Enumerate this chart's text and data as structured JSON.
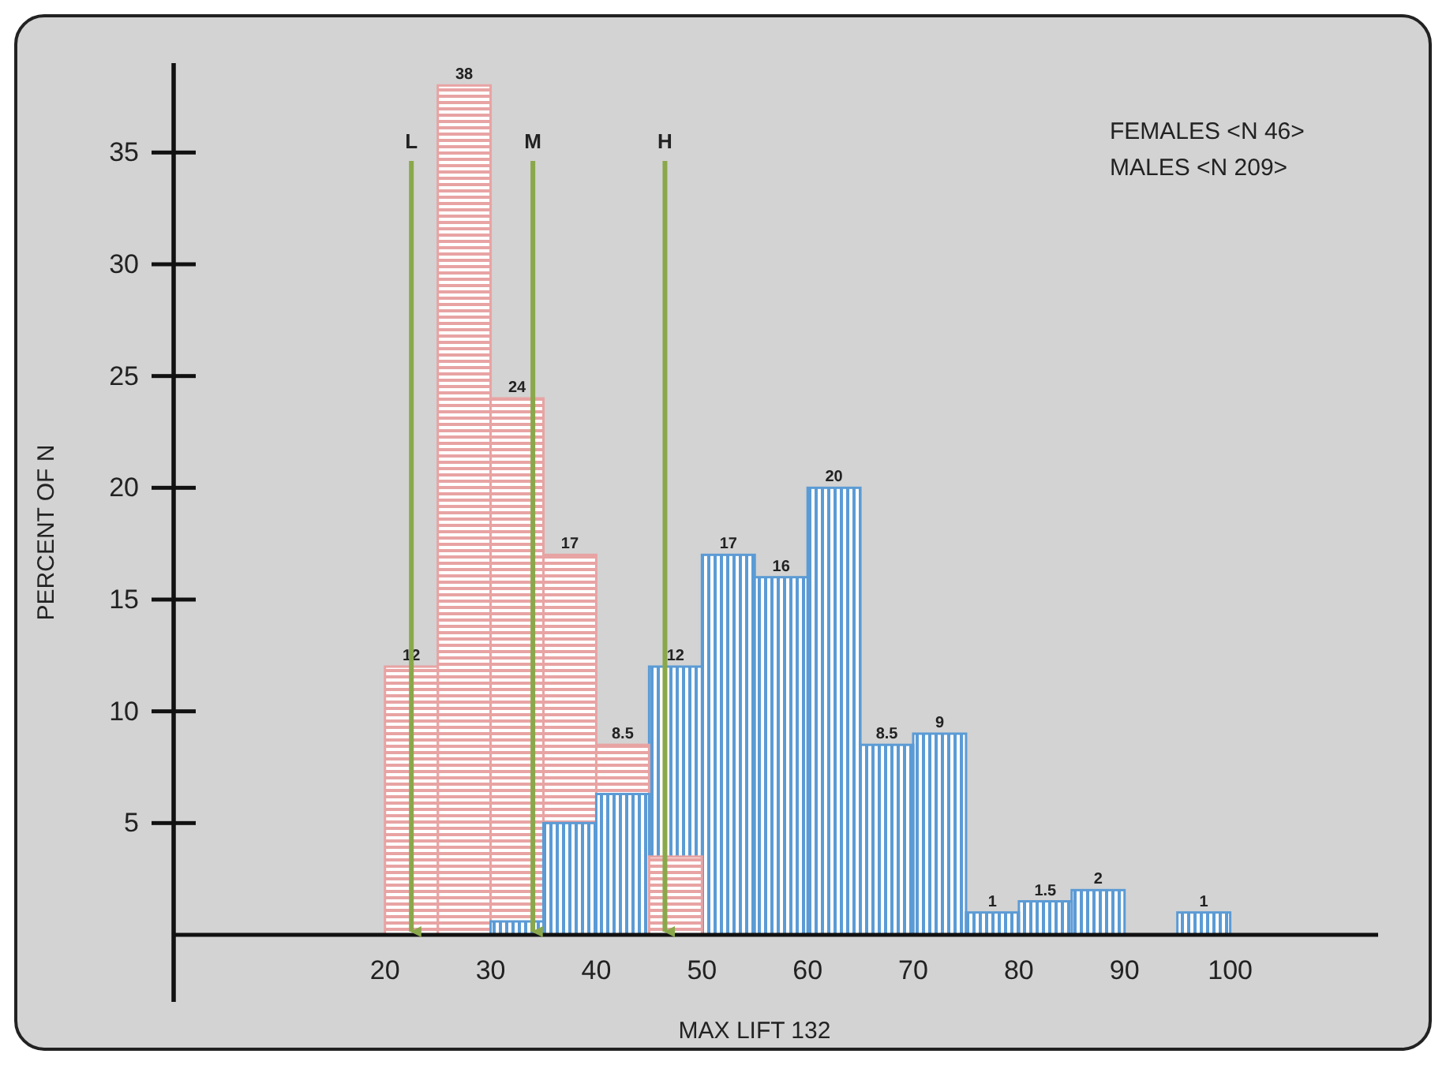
{
  "chart_data": {
    "type": "bar",
    "xlabel": "MAX LIFT 132",
    "ylabel": "PERCENT OF N",
    "xlim": [
      0,
      114
    ],
    "xticks": [
      20,
      30,
      40,
      50,
      60,
      70,
      80,
      90,
      100
    ],
    "ylim": [
      -3,
      39
    ],
    "yticks": [
      5,
      10,
      15,
      20,
      25,
      30,
      35
    ],
    "grid": false,
    "series": [
      {
        "color": "#e8a3a3",
        "x": [
          22.5,
          27.5,
          32.5,
          37.5,
          42.5,
          47.5
        ],
        "values": [
          12,
          38,
          24,
          17,
          8.5,
          3.5
        ],
        "value_labels": [
          "12",
          "38",
          "24",
          "17",
          "8.5",
          null
        ]
      },
      {
        "color": "#5b9bd5",
        "x": [
          32.5,
          37.5,
          42.5,
          47.5,
          52.5,
          57.5,
          62.5,
          67.5,
          72.5,
          77.5,
          82.5,
          87.5,
          97.5
        ],
        "values": [
          0.6,
          5,
          6.3,
          12,
          17,
          16,
          20,
          8.5,
          9,
          1,
          1.5,
          2,
          1
        ],
        "value_labels": [
          null,
          null,
          null,
          "12",
          "17",
          "16",
          "20",
          "8.5",
          "9",
          "1",
          "1.5",
          "2",
          "1"
        ]
      }
    ],
    "ref_lines": [
      {
        "axis": "x",
        "value": 22.5,
        "label": "L",
        "color": "#8aa84a"
      },
      {
        "axis": "x",
        "value": 34,
        "label": "M",
        "color": "#8aa84a"
      },
      {
        "axis": "x",
        "value": 46.5,
        "label": "H",
        "color": "#8aa84a"
      }
    ],
    "annotations": [
      "FEMALES <N 46>",
      "MALES <N 209>"
    ]
  }
}
